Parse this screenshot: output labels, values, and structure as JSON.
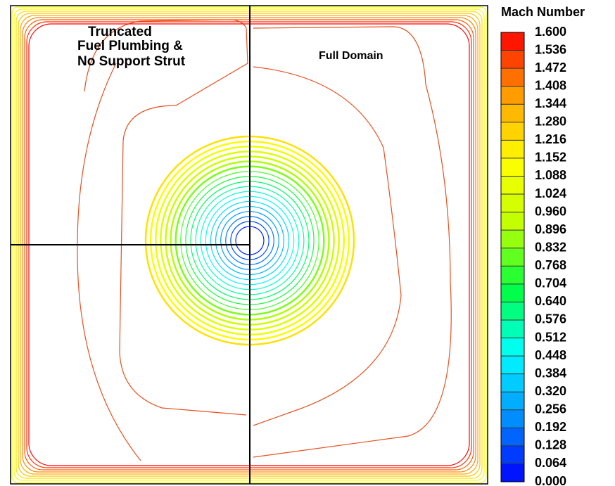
{
  "chart_data": {
    "type": "contour",
    "title": "Mach Number",
    "annotations": [
      "Truncated",
      "Fuel Plumbing &",
      "No Support Strut",
      "Full Domain"
    ],
    "clim": [
      0,
      1.6
    ],
    "levels": [
      {
        "value": 0,
        "label": "0.000"
      },
      {
        "value": 0.064,
        "label": "0.064"
      },
      {
        "value": 0.128,
        "label": "0.128"
      },
      {
        "value": 0.192,
        "label": "0.192"
      },
      {
        "value": 0.256,
        "label": "0.256"
      },
      {
        "value": 0.32,
        "label": "0.320"
      },
      {
        "value": 0.384,
        "label": "0.384"
      },
      {
        "value": 0.448,
        "label": "0.448"
      },
      {
        "value": 0.512,
        "label": "0.512"
      },
      {
        "value": 0.576,
        "label": "0.576"
      },
      {
        "value": 0.64,
        "label": "0.640"
      },
      {
        "value": 0.704,
        "label": "0.704"
      },
      {
        "value": 0.768,
        "label": "0.768"
      },
      {
        "value": 0.832,
        "label": "0.832"
      },
      {
        "value": 0.896,
        "label": "0.896"
      },
      {
        "value": 0.96,
        "label": "0.960"
      },
      {
        "value": 1.024,
        "label": "1.024"
      },
      {
        "value": 1.088,
        "label": "1.088"
      },
      {
        "value": 1.152,
        "label": "1.152"
      },
      {
        "value": 1.216,
        "label": "1.216"
      },
      {
        "value": 1.28,
        "label": "1.280"
      },
      {
        "value": 1.344,
        "label": "1.344"
      },
      {
        "value": 1.408,
        "label": "1.408"
      },
      {
        "value": 1.472,
        "label": "1.472"
      },
      {
        "value": 1.536,
        "label": "1.536"
      },
      {
        "value": 1.6,
        "label": "1.600"
      }
    ],
    "colormap": [
      "#0000ff",
      "#0090ff",
      "#00ffff",
      "#00ff40",
      "#c0ff00",
      "#ffff00",
      "#ffa000",
      "#ff0000"
    ]
  }
}
